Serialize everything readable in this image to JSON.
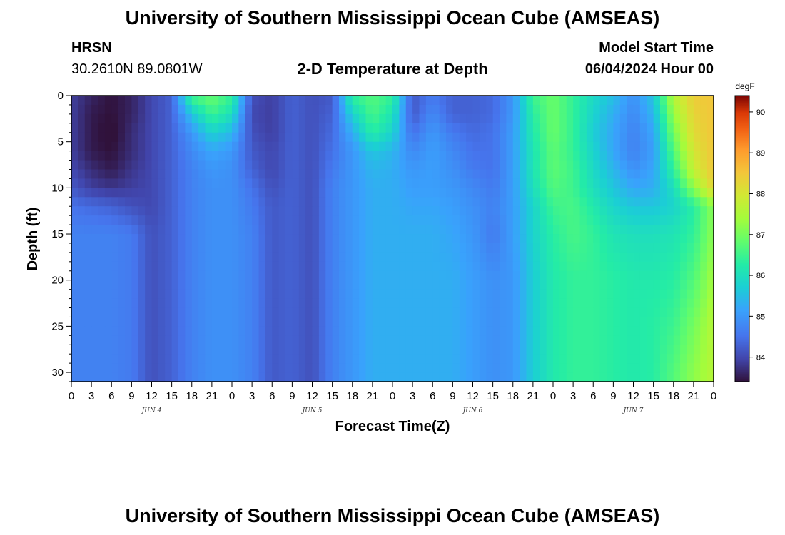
{
  "header": {
    "title": "University of Southern Mississippi Ocean Cube (AMSEAS)",
    "station_name": "HRSN",
    "station_coords": "30.2610N  89.0801W",
    "plot_title": "2-D Temperature at Depth",
    "model_start_label": "Model Start Time",
    "model_start_value": "06/04/2024 Hour 00"
  },
  "footer": {
    "title": "University of Southern Mississippi Ocean Cube (AMSEAS)"
  },
  "chart_data": {
    "type": "heatmap",
    "title": "2-D Temperature at Depth",
    "xlabel": "Forecast Time(Z)",
    "ylabel": "Depth (ft)",
    "units": "degF",
    "xlim": [
      0,
      96
    ],
    "ylim": [
      0,
      31
    ],
    "x_tick_labels": [
      "0",
      "3",
      "6",
      "9",
      "12",
      "15",
      "18",
      "21",
      "0",
      "3",
      "6",
      "9",
      "12",
      "15",
      "18",
      "21",
      "0",
      "3",
      "6",
      "9",
      "12",
      "15",
      "18",
      "21",
      "0",
      "3",
      "6",
      "9",
      "12",
      "15",
      "18",
      "21",
      "0"
    ],
    "day_labels": [
      "JUN 4",
      "JUN 5",
      "JUN 6",
      "JUN 7"
    ],
    "y_ticks": [
      0,
      5,
      10,
      15,
      20,
      25,
      30
    ],
    "colorbar": {
      "min": 83.4,
      "max": 90.4,
      "ticks": [
        84,
        85,
        86,
        87,
        88,
        89,
        90
      ]
    },
    "x_hours": [
      0,
      3,
      6,
      9,
      12,
      15,
      18,
      21,
      24,
      27,
      30,
      33,
      36,
      39,
      42,
      45,
      48,
      51,
      54,
      57,
      60,
      63,
      66,
      69,
      72,
      75,
      78,
      81,
      84,
      87,
      90,
      93,
      96
    ],
    "depths_ft": [
      0,
      2,
      4,
      6,
      8,
      10,
      12,
      15,
      20,
      25,
      30
    ],
    "temperature_degF": [
      [
        83.9,
        83.6,
        83.4,
        83.6,
        84.0,
        84.3,
        86.6,
        86.9,
        86.4,
        84.1,
        83.9,
        84.3,
        84.1,
        84.2,
        86.4,
        86.7,
        86.4,
        84.2,
        84.6,
        84.3,
        84.3,
        84.4,
        85.0,
        86.5,
        86.9,
        86.4,
        85.9,
        85.5,
        84.9,
        85.6,
        87.6,
        88.4,
        88.5
      ],
      [
        83.9,
        83.5,
        83.4,
        83.6,
        84.0,
        84.3,
        85.6,
        86.5,
        86.0,
        84.0,
        83.9,
        84.3,
        84.1,
        84.3,
        85.8,
        86.6,
        86.1,
        84.2,
        84.8,
        84.3,
        84.3,
        84.4,
        85.0,
        86.3,
        86.9,
        86.4,
        85.8,
        85.3,
        84.8,
        85.4,
        87.3,
        88.3,
        88.5
      ],
      [
        83.9,
        83.5,
        83.3,
        83.7,
        84.0,
        84.3,
        85.0,
        85.8,
        85.4,
        84.1,
        83.9,
        84.3,
        84.1,
        84.4,
        85.3,
        86.3,
        85.8,
        84.5,
        85.0,
        84.6,
        84.4,
        84.5,
        85.1,
        86.2,
        86.9,
        86.4,
        85.7,
        85.2,
        84.7,
        85.2,
        87.0,
        88.2,
        88.5
      ],
      [
        83.9,
        83.5,
        83.4,
        83.7,
        84.0,
        84.3,
        84.8,
        85.2,
        85.0,
        84.2,
        84.0,
        84.3,
        84.1,
        84.5,
        85.0,
        85.6,
        85.4,
        84.8,
        85.1,
        84.8,
        84.5,
        84.5,
        85.1,
        86.1,
        86.8,
        86.4,
        85.8,
        85.2,
        84.7,
        85.1,
        86.7,
        88.0,
        88.5
      ],
      [
        84.0,
        83.7,
        83.5,
        83.8,
        84.0,
        84.3,
        84.7,
        85.0,
        84.9,
        84.3,
        84.0,
        84.3,
        84.1,
        84.6,
        85.0,
        85.4,
        85.3,
        85.0,
        85.1,
        84.9,
        84.6,
        84.5,
        85.1,
        86.1,
        86.8,
        86.5,
        85.9,
        85.4,
        84.9,
        85.2,
        86.4,
        87.8,
        88.5
      ],
      [
        84.2,
        83.9,
        83.8,
        83.9,
        84.0,
        84.3,
        84.7,
        84.9,
        84.9,
        84.5,
        84.1,
        84.3,
        84.1,
        84.7,
        85.0,
        85.3,
        85.3,
        85.1,
        85.1,
        85.0,
        84.8,
        84.6,
        85.1,
        86.0,
        86.7,
        86.5,
        86.0,
        85.6,
        85.2,
        85.3,
        86.0,
        87.2,
        88.3
      ],
      [
        84.5,
        84.4,
        84.3,
        84.1,
        84.0,
        84.3,
        84.7,
        84.9,
        84.9,
        84.6,
        84.2,
        84.3,
        84.1,
        84.7,
        85.0,
        85.3,
        85.3,
        85.2,
        85.2,
        85.1,
        84.9,
        84.7,
        85.1,
        85.8,
        86.5,
        86.6,
        86.2,
        85.8,
        85.6,
        85.6,
        85.8,
        86.3,
        87.2
      ],
      [
        84.7,
        84.7,
        84.7,
        84.6,
        84.1,
        84.3,
        84.7,
        84.9,
        84.9,
        84.7,
        84.2,
        84.3,
        84.1,
        84.7,
        85.0,
        85.3,
        85.3,
        85.3,
        85.3,
        85.2,
        85.0,
        84.6,
        85.1,
        85.8,
        86.3,
        86.6,
        86.4,
        86.1,
        86.0,
        86.0,
        86.1,
        86.4,
        87.2
      ],
      [
        84.7,
        84.7,
        84.7,
        84.6,
        84.1,
        84.3,
        84.7,
        84.9,
        84.9,
        84.7,
        84.2,
        84.3,
        84.1,
        84.7,
        85.0,
        85.3,
        85.3,
        85.3,
        85.3,
        85.3,
        85.1,
        84.9,
        85.0,
        85.7,
        86.2,
        86.4,
        86.4,
        86.3,
        86.2,
        86.2,
        86.3,
        86.7,
        87.4
      ],
      [
        84.7,
        84.7,
        84.7,
        84.6,
        84.1,
        84.3,
        84.7,
        84.9,
        84.9,
        84.7,
        84.2,
        84.3,
        84.1,
        84.7,
        85.0,
        85.3,
        85.3,
        85.3,
        85.3,
        85.3,
        85.1,
        84.9,
        85.0,
        85.7,
        86.2,
        86.4,
        86.4,
        86.3,
        86.2,
        86.3,
        86.5,
        87.0,
        87.6
      ],
      [
        84.7,
        84.7,
        84.7,
        84.6,
        84.1,
        84.3,
        84.7,
        84.9,
        84.9,
        84.7,
        84.2,
        84.3,
        84.1,
        84.7,
        85.0,
        85.3,
        85.3,
        85.3,
        85.3,
        85.3,
        85.1,
        84.9,
        85.0,
        85.7,
        86.2,
        86.4,
        86.4,
        86.3,
        86.2,
        86.3,
        86.7,
        87.2,
        87.6
      ]
    ]
  }
}
